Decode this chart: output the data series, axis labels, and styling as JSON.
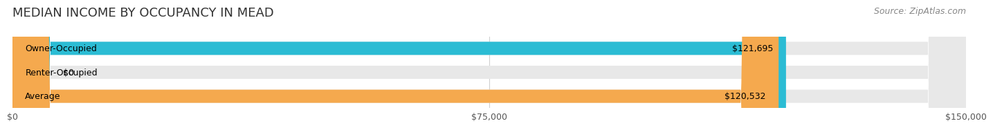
{
  "title": "MEDIAN INCOME BY OCCUPANCY IN MEAD",
  "source": "Source: ZipAtlas.com",
  "categories": [
    "Owner-Occupied",
    "Renter-Occupied",
    "Average"
  ],
  "values": [
    121695,
    0,
    120532
  ],
  "bar_colors": [
    "#2bbcd4",
    "#c3a8d1",
    "#f5a94e"
  ],
  "bar_bg_color": "#f0f0f0",
  "value_labels": [
    "$121,695",
    "$0",
    "$120,532"
  ],
  "xlim": [
    0,
    150000
  ],
  "xticks": [
    0,
    75000,
    150000
  ],
  "xtick_labels": [
    "$0",
    "$75,000",
    "$150,000"
  ],
  "title_fontsize": 13,
  "source_fontsize": 9,
  "label_fontsize": 9,
  "value_fontsize": 9,
  "bar_height": 0.55,
  "background_color": "#ffffff",
  "grid_color": "#d0d0d0"
}
